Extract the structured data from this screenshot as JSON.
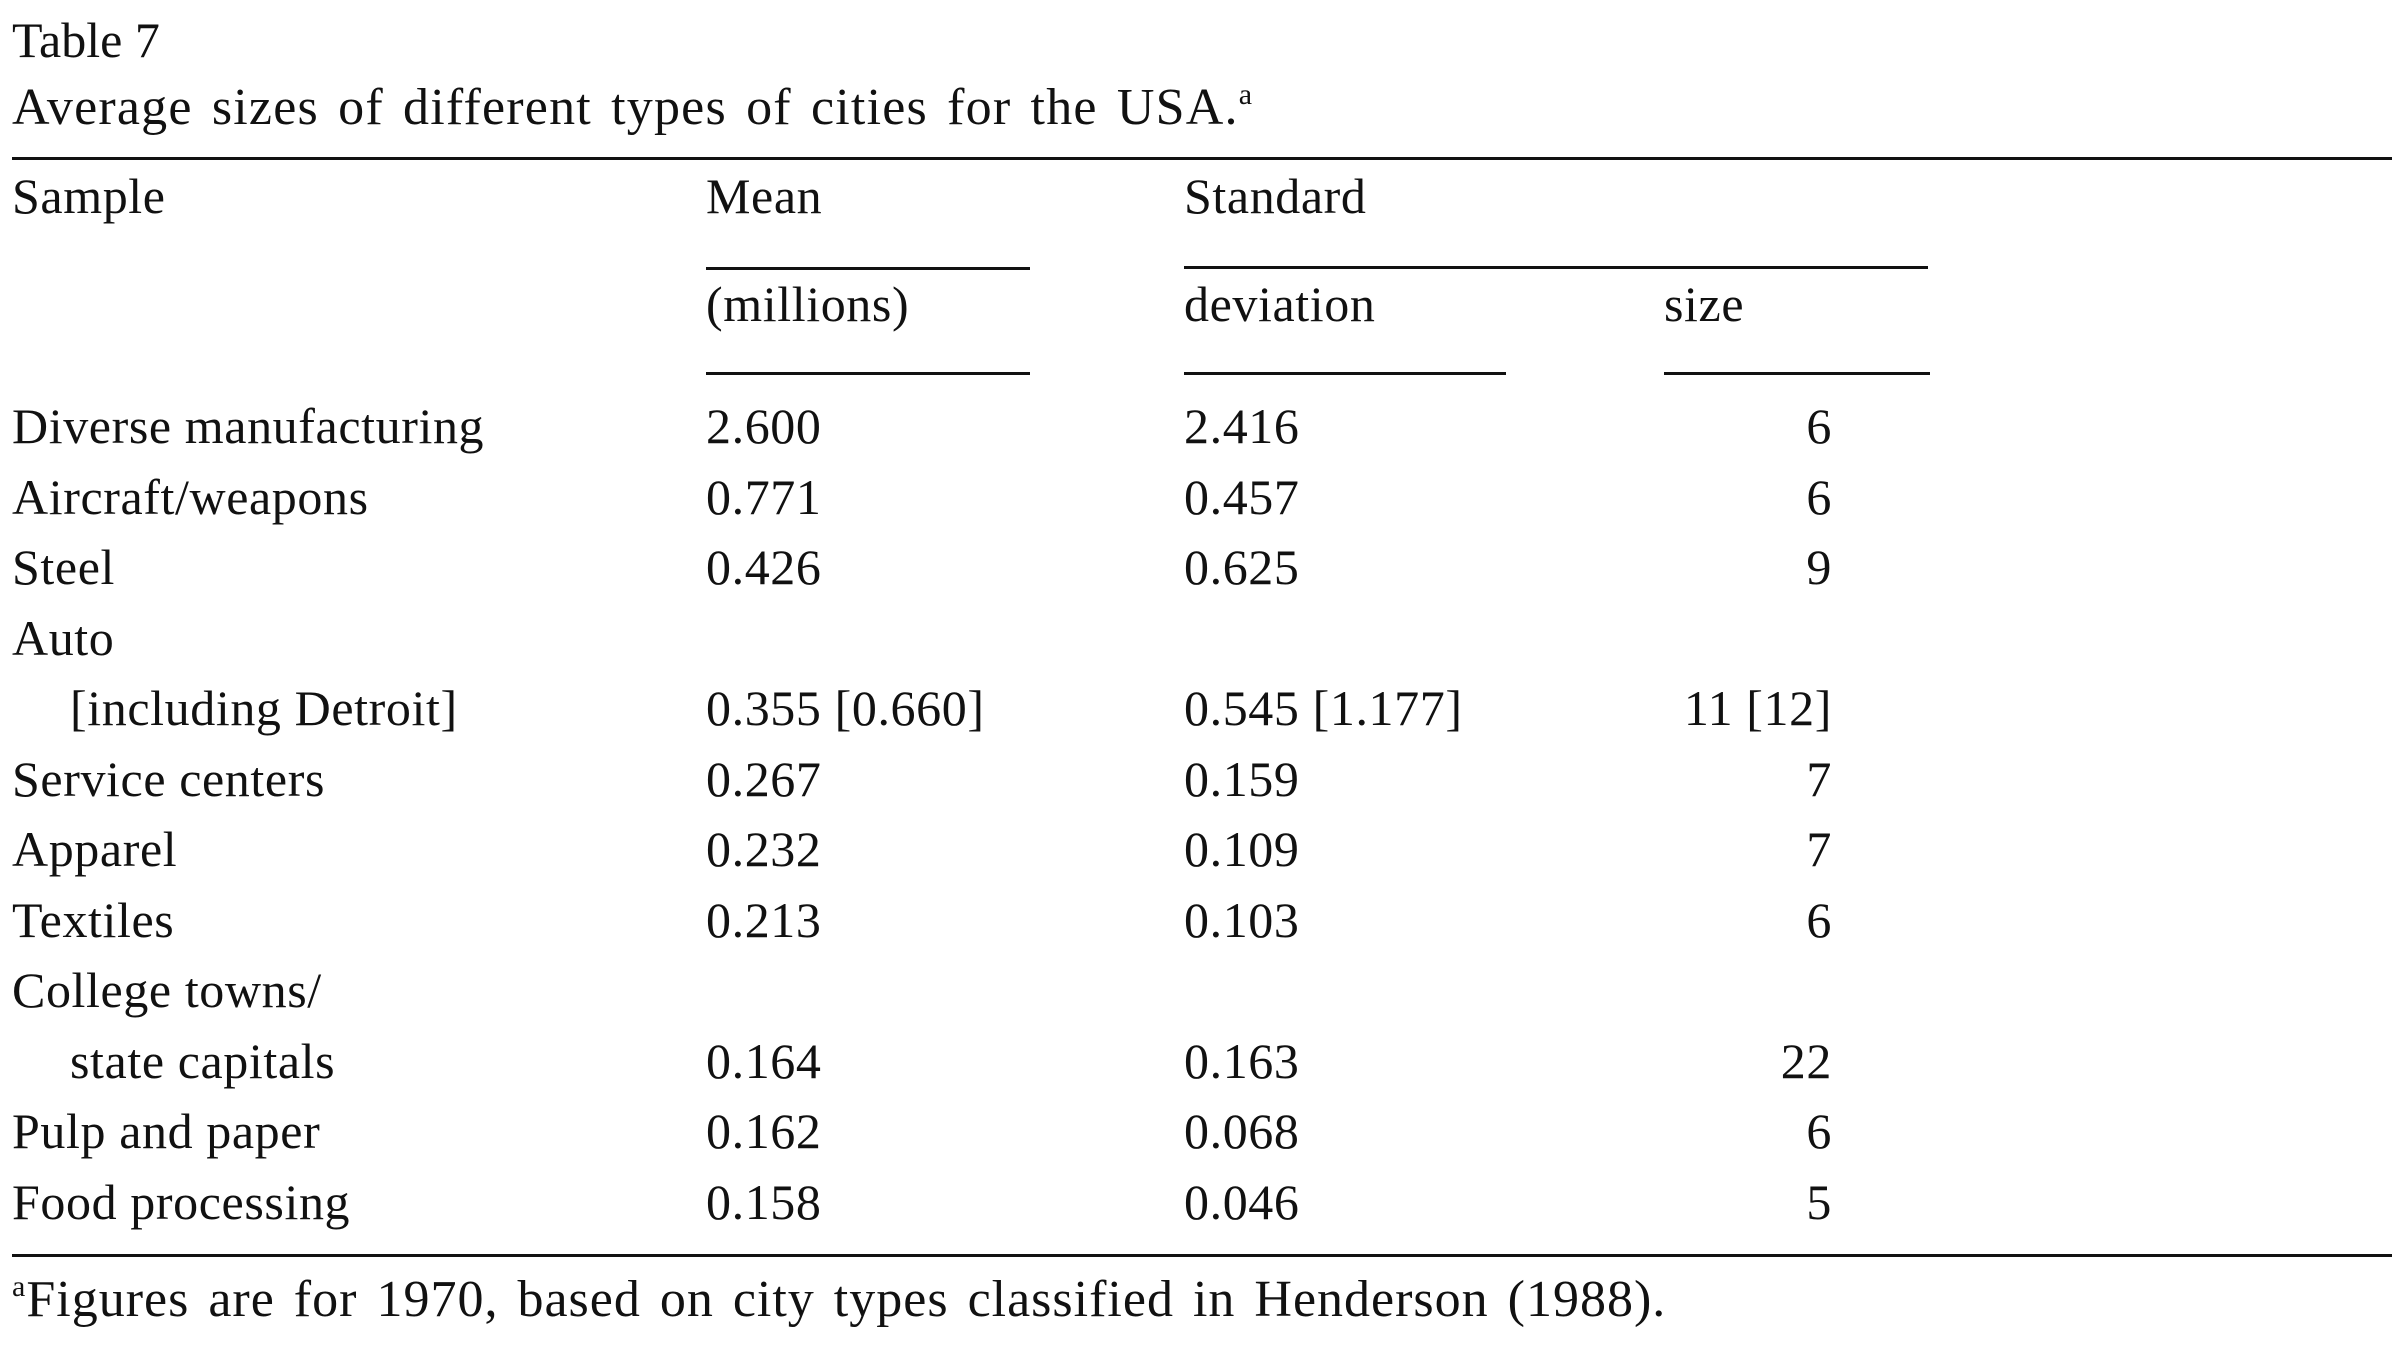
{
  "table": {
    "label": "Table 7",
    "title": "Average sizes of different types of cities for the USA.",
    "title_note_marker": "a",
    "headers": {
      "sample": "Sample",
      "mean_line1": "Mean",
      "mean_line2": "(millions)",
      "std_line1": "Standard",
      "std_line2": "deviation",
      "size_line2": "size"
    },
    "rows": [
      {
        "sample": "Diverse manufacturing",
        "mean": "2.600",
        "std": "2.416",
        "size": "6"
      },
      {
        "sample": "Aircraft/weapons",
        "mean": "0.771",
        "std": "0.457",
        "size": "6"
      },
      {
        "sample": "Steel",
        "mean": "0.426",
        "std": "0.625",
        "size": "9"
      },
      {
        "sample": "Auto",
        "mean": "",
        "std": "",
        "size": ""
      },
      {
        "sample": "[including Detroit]",
        "mean": "0.355 [0.660]",
        "std": "0.545 [1.177]",
        "size": "11 [12]"
      },
      {
        "sample": "Service centers",
        "mean": "0.267",
        "std": "0.159",
        "size": "7"
      },
      {
        "sample": "Apparel",
        "mean": "0.232",
        "std": "0.109",
        "size": "7"
      },
      {
        "sample": "Textiles",
        "mean": "0.213",
        "std": "0.103",
        "size": "6"
      },
      {
        "sample": "College towns/",
        "mean": "",
        "std": "",
        "size": ""
      },
      {
        "sample": "state capitals",
        "mean": "0.164",
        "std": "0.163",
        "size": "22"
      },
      {
        "sample": "Pulp and paper",
        "mean": "0.162",
        "std": "0.068",
        "size": "6"
      },
      {
        "sample": "Food processing",
        "mean": "0.158",
        "std": "0.046",
        "size": "5"
      }
    ],
    "footnote_marker": "a",
    "footnote": "Figures are for 1970, based on city types classified in Henderson (1988)."
  }
}
